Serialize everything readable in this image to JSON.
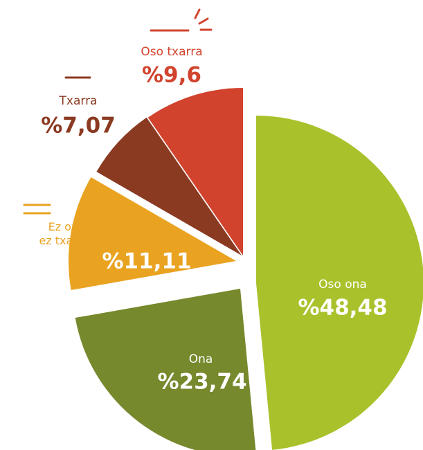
{
  "chart_data": {
    "type": "pie",
    "categories": [
      "Oso ona",
      "Ona",
      "Ez ona, ez txarra",
      "Txarra",
      "Oso txarra"
    ],
    "values": [
      48.48,
      23.74,
      11.11,
      7.07,
      9.6
    ],
    "value_labels": [
      "%48,48",
      "%23,74",
      "%11,11",
      "%7,07",
      "%9,6"
    ],
    "colors": [
      "#a9c22c",
      "#76892d",
      "#e9a321",
      "#8b3a22",
      "#d1432d"
    ]
  }
}
